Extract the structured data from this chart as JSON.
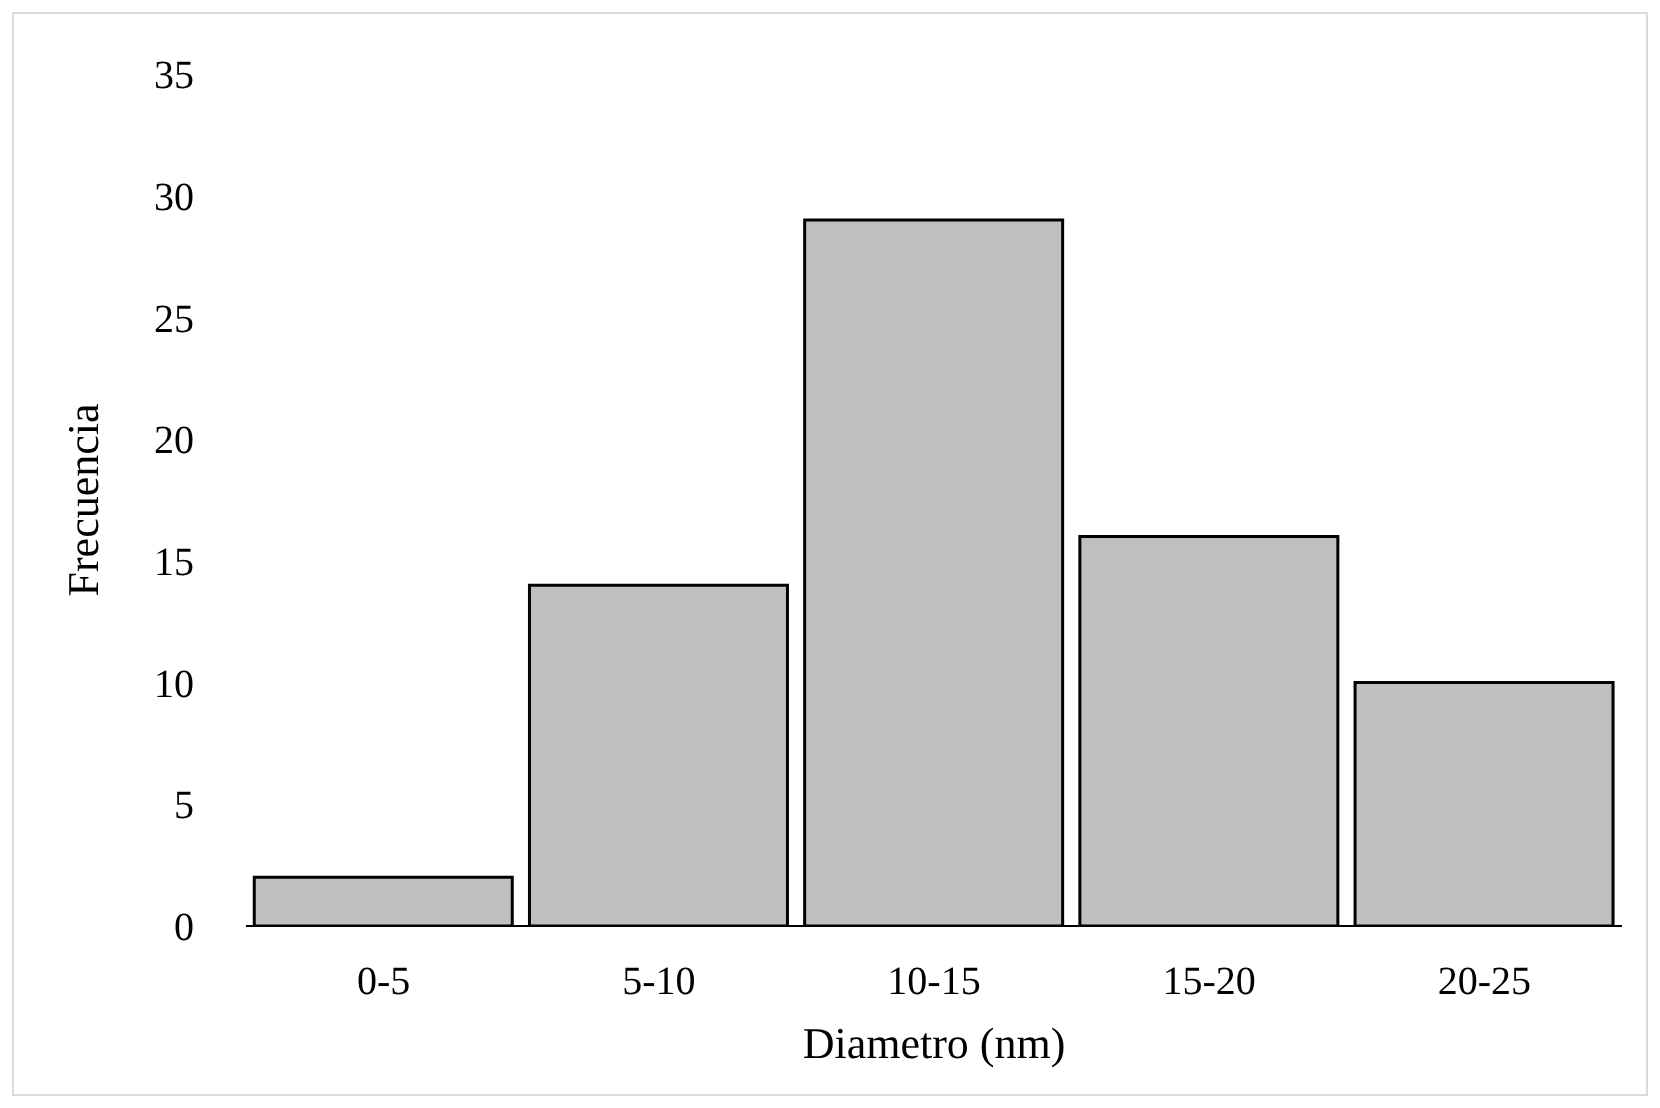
{
  "chart_data": {
    "type": "bar",
    "xlabel": "Diametro (nm)",
    "ylabel": "Frecuencia",
    "categories": [
      "0-5",
      "5-10",
      "10-15",
      "15-20",
      "20-25"
    ],
    "values": [
      2,
      14,
      29,
      16,
      10
    ],
    "color": "#bfbfbf",
    "ylim": [
      0,
      35
    ],
    "yticks": [
      0,
      5,
      10,
      15,
      20,
      25,
      30,
      35
    ],
    "grid": false
  }
}
